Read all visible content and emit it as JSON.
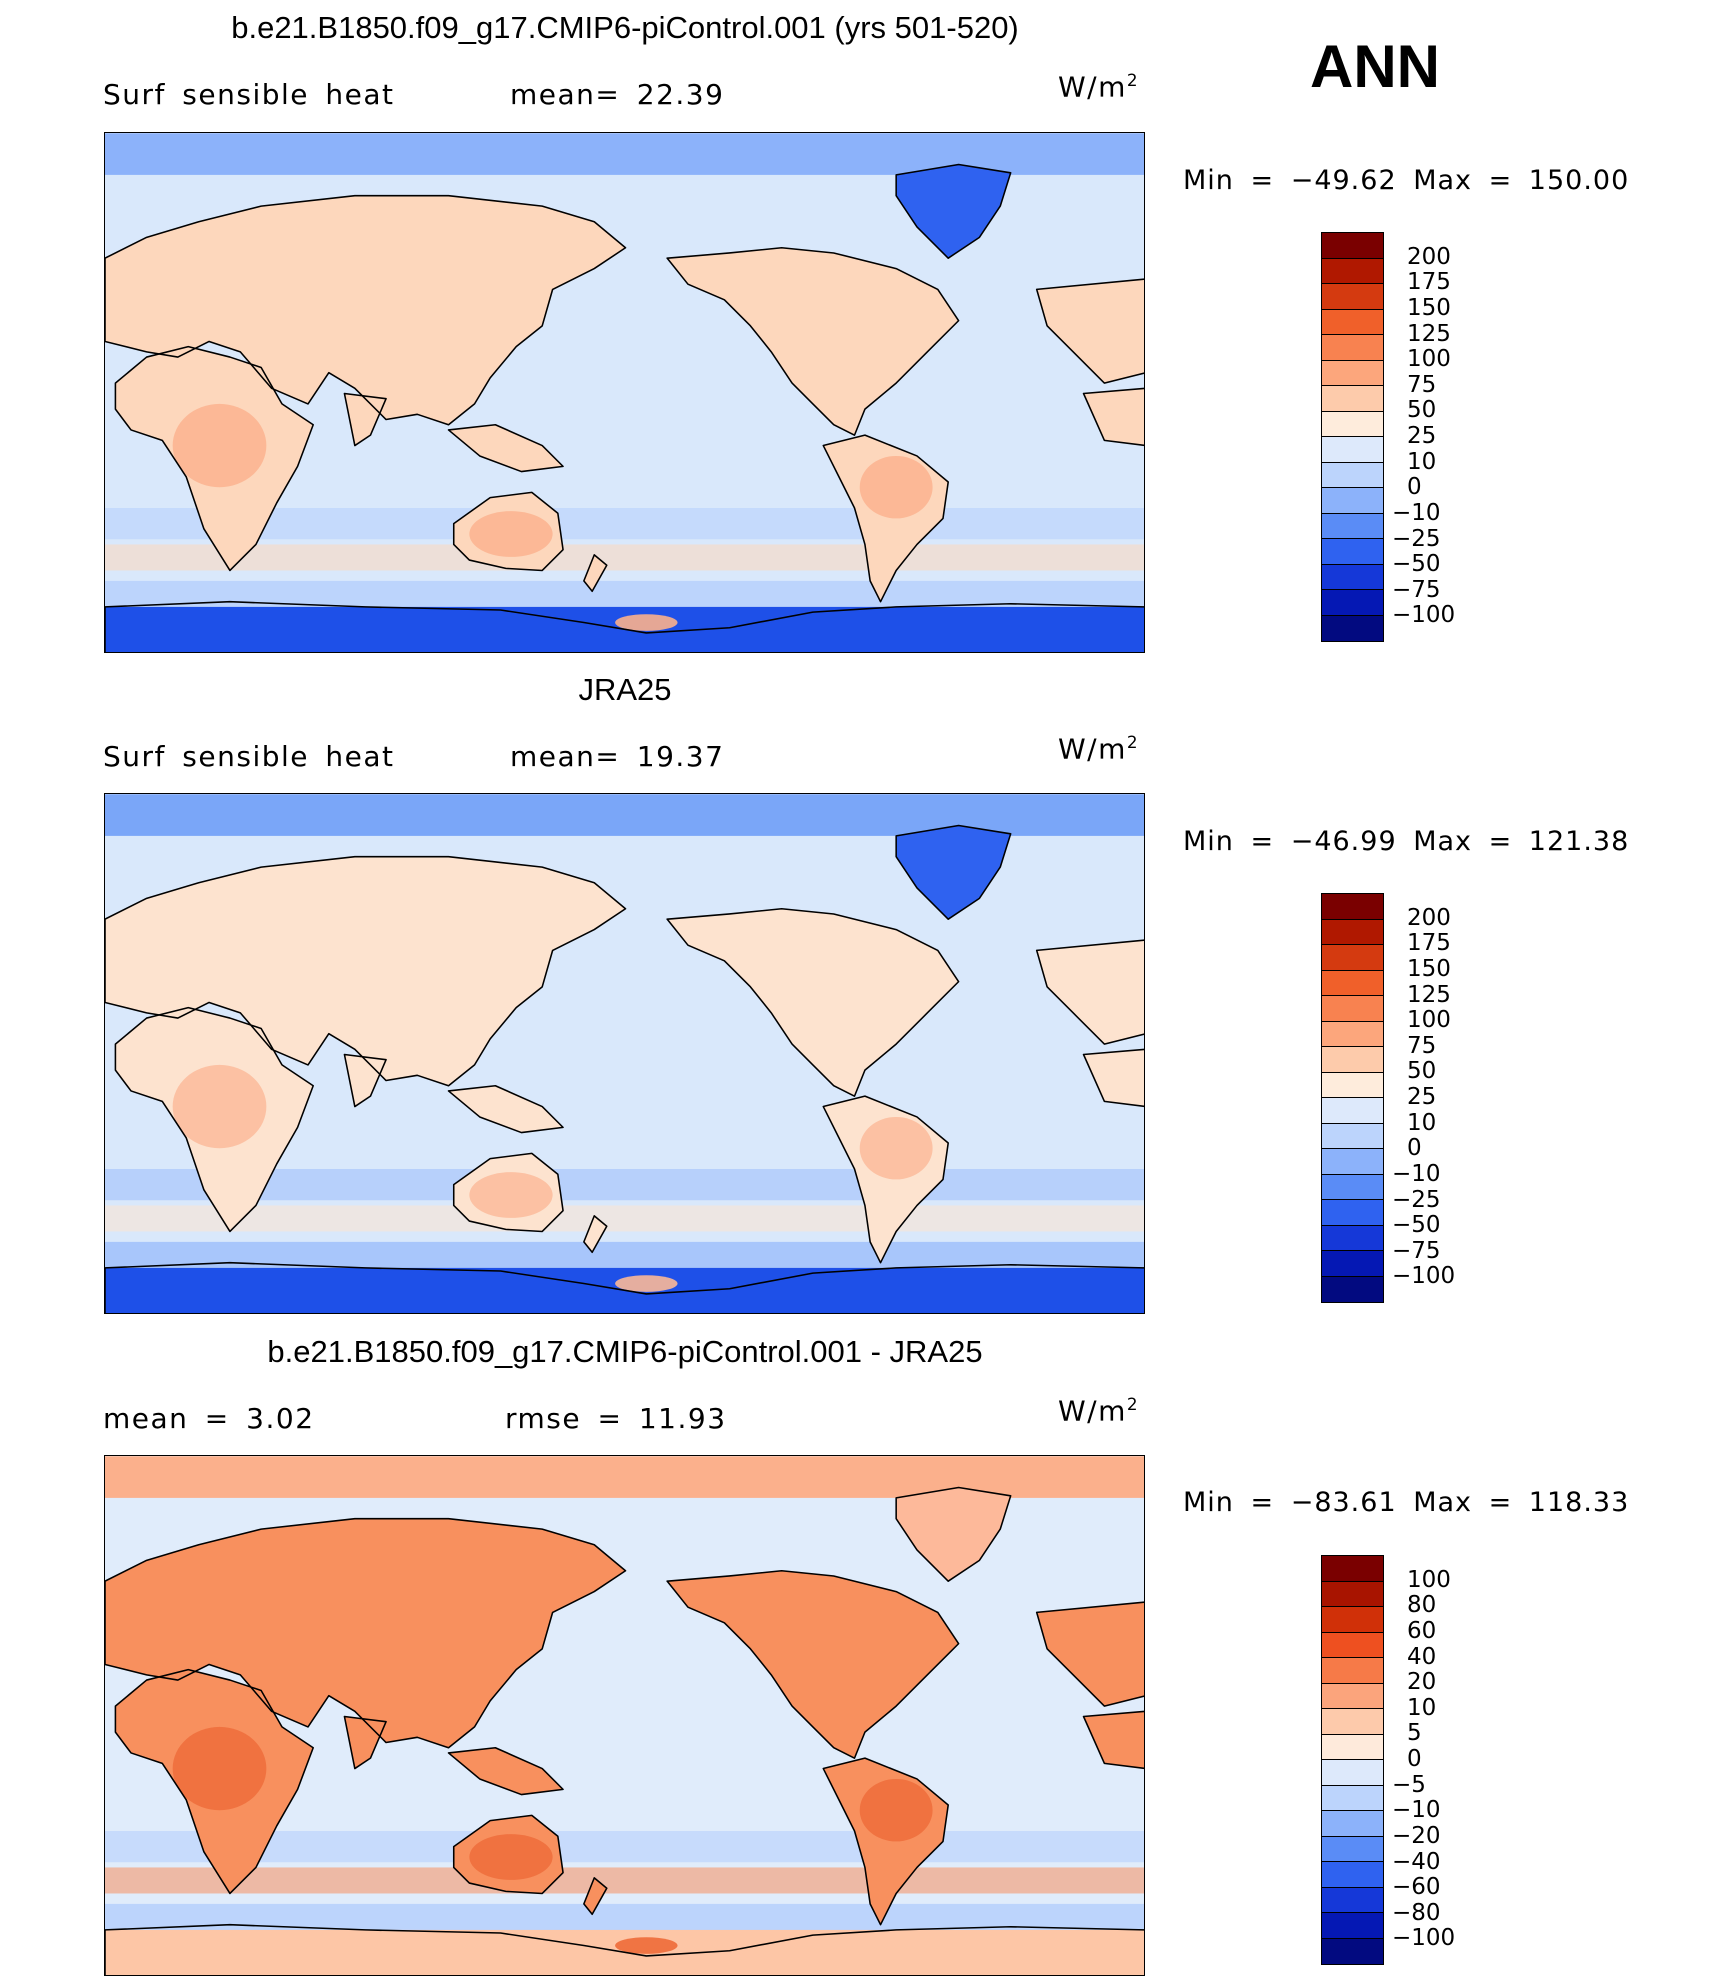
{
  "season": "ANN",
  "panels": [
    {
      "id": "model",
      "title": "b.e21.B1850.f09_g17.CMIP6-piControl.001 (yrs 501-520)",
      "left_text": "Surf  sensible  heat",
      "mid_text": "mean=   22.39",
      "units": "W/m",
      "units_sup": "2",
      "minmax": "Min  =  −49.62  Max  =  150.00",
      "colorbar_labels": [
        "200",
        "175",
        "150",
        "125",
        "100",
        "75",
        "50",
        "25",
        "10",
        "0",
        "−10",
        "−25",
        "−50",
        "−75",
        "−100"
      ],
      "colorbar_colors": [
        "#7a0000",
        "#b01800",
        "#d43a10",
        "#f0602a",
        "#f88250",
        "#fca67c",
        "#fdcbab",
        "#feecdc",
        "#dde9fb",
        "#bcd4fc",
        "#8cb2fa",
        "#5a8cf6",
        "#2f62f0",
        "#1538d8",
        "#0518b4",
        "#020a80"
      ],
      "palette": {
        "ocean": "#d9e8fb",
        "ocean_neg": "#bcd4fc",
        "land": "#fdd7bc",
        "land_hot": "#fbb08c",
        "high_lat": "#8cb2fa",
        "antarctic": "#1e50e8",
        "greenland": "#2f62f0"
      }
    },
    {
      "id": "obs",
      "title": "JRA25",
      "left_text": "Surf  sensible  heat",
      "mid_text": "mean=   19.37",
      "units": "W/m",
      "units_sup": "2",
      "minmax": "Min  =  −46.99  Max  =  121.38",
      "colorbar_labels": [
        "200",
        "175",
        "150",
        "125",
        "100",
        "75",
        "50",
        "25",
        "10",
        "0",
        "−10",
        "−25",
        "−50",
        "−75",
        "−100"
      ],
      "colorbar_colors": [
        "#7a0000",
        "#b01800",
        "#d43a10",
        "#f0602a",
        "#f88250",
        "#fca67c",
        "#fdcbab",
        "#feecdc",
        "#dde9fb",
        "#bcd4fc",
        "#8cb2fa",
        "#5a8cf6",
        "#2f62f0",
        "#1538d8",
        "#0518b4",
        "#020a80"
      ],
      "palette": {
        "ocean": "#d9e8fb",
        "ocean_neg": "#a8c6fb",
        "land": "#fde3cf",
        "land_hot": "#fbb897",
        "high_lat": "#7aa6f8",
        "antarctic": "#1e50e8",
        "greenland": "#2f62f0"
      }
    },
    {
      "id": "diff",
      "title": "b.e21.B1850.f09_g17.CMIP6-piControl.001 - JRA25",
      "left_text": "mean  =      3.02",
      "mid_text": "rmse  =     11.93",
      "units": "W/m",
      "units_sup": "2",
      "minmax": "Min  =  −83.61  Max  =  118.33",
      "colorbar_labels": [
        "100",
        "80",
        "60",
        "40",
        "20",
        "10",
        "5",
        "0",
        "−5",
        "−10",
        "−20",
        "−40",
        "−60",
        "−80",
        "−100"
      ],
      "colorbar_colors": [
        "#7a0000",
        "#a81400",
        "#d03008",
        "#ee5020",
        "#f67a48",
        "#fba47c",
        "#fdcaab",
        "#feeadb",
        "#dde9fb",
        "#bcd4fc",
        "#8cb2fa",
        "#5a8cf6",
        "#2f62f0",
        "#1538d8",
        "#0518b4",
        "#020a80"
      ],
      "palette": {
        "ocean": "#e0ecfb",
        "ocean_neg": "#bcd4fc",
        "land": "#f8905e",
        "land_hot": "#ee6a38",
        "high_lat": "#fbb08c",
        "antarctic": "#fdc6a6",
        "greenland": "#fdb99a"
      }
    }
  ]
}
